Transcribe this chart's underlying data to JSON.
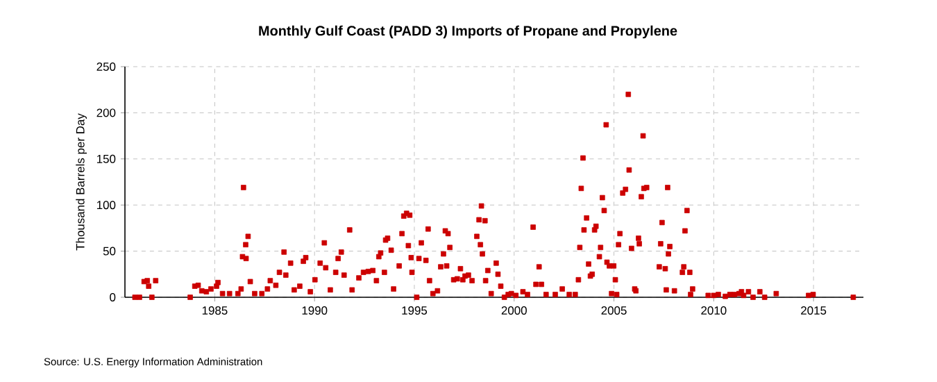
{
  "chart_data": {
    "type": "scatter",
    "title": "Monthly Gulf Coast (PADD 3) Imports of Propane and Propylene",
    "ylabel": "Thousand Barrels per Day",
    "annotations": [
      "Source: U.S. Energy Information Administration"
    ],
    "x": [
      1981.0,
      1981.23,
      1981.46,
      1981.62,
      1981.69,
      1981.85,
      1982.04,
      1983.77,
      1984.0,
      1984.17,
      1984.35,
      1984.58,
      1984.81,
      1985.09,
      1985.16,
      1985.39,
      1985.74,
      1986.16,
      1986.32,
      1986.39,
      1986.44,
      1986.55,
      1986.67,
      1986.57,
      1986.78,
      1987.0,
      1987.36,
      1987.64,
      1987.78,
      1988.06,
      1988.24,
      1988.47,
      1988.56,
      1988.8,
      1988.98,
      1989.26,
      1989.44,
      1989.56,
      1989.79,
      1990.02,
      1990.28,
      1990.49,
      1990.56,
      1990.79,
      1991.06,
      1991.18,
      1991.34,
      1991.48,
      1991.76,
      1991.88,
      1992.22,
      1992.45,
      1992.69,
      1992.92,
      1993.1,
      1993.22,
      1993.31,
      1993.5,
      1993.56,
      1993.66,
      1993.84,
      1993.96,
      1994.24,
      1994.38,
      1994.47,
      1994.61,
      1994.77,
      1994.7,
      1994.84,
      1994.88,
      1995.12,
      1995.23,
      1995.35,
      1995.58,
      1995.69,
      1995.76,
      1995.93,
      1996.16,
      1996.32,
      1996.46,
      1996.55,
      1996.62,
      1996.69,
      1996.78,
      1996.97,
      1997.15,
      1997.31,
      1997.43,
      1997.54,
      1997.71,
      1997.89,
      1998.13,
      1998.24,
      1998.36,
      1998.54,
      1998.31,
      1998.41,
      1998.57,
      1998.68,
      1998.85,
      1999.1,
      1999.19,
      1999.33,
      1999.51,
      1999.7,
      1999.86,
      2000.09,
      2000.44,
      2000.67,
      2000.95,
      2001.09,
      2001.25,
      2001.37,
      2001.6,
      2002.06,
      2002.41,
      2002.76,
      2003.06,
      2003.22,
      2003.29,
      2003.36,
      2003.45,
      2003.5,
      2003.63,
      2003.73,
      2003.82,
      2003.91,
      2004.03,
      2004.1,
      2004.27,
      2004.33,
      2004.42,
      2004.51,
      2004.61,
      2004.65,
      2004.77,
      2004.88,
      2004.99,
      2005.07,
      2005.14,
      2005.23,
      2005.3,
      2005.44,
      2005.58,
      2005.72,
      2005.76,
      2005.88,
      2006.04,
      2006.1,
      2006.23,
      2006.27,
      2006.37,
      2006.46,
      2006.5,
      2006.64,
      2007.27,
      2007.34,
      2007.41,
      2007.57,
      2007.62,
      2007.69,
      2007.73,
      2007.8,
      2008.03,
      2008.43,
      2008.5,
      2008.56,
      2008.66,
      2008.8,
      2008.84,
      2008.94,
      2009.72,
      2010.0,
      2010.23,
      2010.58,
      2010.81,
      2011.04,
      2011.27,
      2011.39,
      2011.5,
      2011.74,
      2011.97,
      2012.31,
      2012.55,
      2013.13,
      2014.75,
      2014.98,
      2016.99
    ],
    "values": [
      0,
      0,
      17,
      18,
      12,
      0,
      18,
      0,
      12,
      13,
      7,
      6,
      9,
      12,
      16,
      4,
      4,
      4,
      9,
      44,
      119,
      57,
      66,
      42,
      17,
      4,
      4,
      9,
      18,
      13,
      27,
      49,
      24,
      37,
      8,
      12,
      39,
      43,
      6,
      19,
      37,
      59,
      32,
      8,
      27,
      42,
      49,
      24,
      73,
      8,
      21,
      27,
      28,
      29,
      18,
      44,
      48,
      27,
      62,
      64,
      51,
      9,
      34,
      69,
      88,
      91,
      89,
      56,
      43,
      27,
      0,
      42,
      59,
      40,
      74,
      18,
      4,
      7,
      33,
      47,
      72,
      34,
      69,
      54,
      19,
      20,
      31,
      19,
      23,
      24,
      18,
      66,
      84,
      99,
      83,
      57,
      47,
      18,
      29,
      4,
      37,
      25,
      12,
      0,
      3,
      4,
      2,
      6,
      3,
      76,
      14,
      33,
      14,
      3,
      3,
      9,
      3,
      3,
      19,
      54,
      118,
      151,
      73,
      86,
      36,
      23,
      25,
      73,
      77,
      44,
      54,
      108,
      94,
      187,
      38,
      34,
      4,
      34,
      19,
      3,
      57,
      69,
      113,
      117,
      220,
      138,
      53,
      9,
      7,
      64,
      58,
      109,
      175,
      118,
      119,
      33,
      58,
      81,
      31,
      8,
      119,
      47,
      55,
      7,
      27,
      33,
      72,
      94,
      27,
      3,
      9,
      2,
      2,
      3,
      1,
      3,
      3,
      4,
      6,
      2,
      6,
      0,
      6,
      0,
      4,
      2,
      3,
      0
    ],
    "color": "#cc0000",
    "marker": "square",
    "xlim": [
      1980.5,
      2017.5
    ],
    "xticks": [
      1985,
      1990,
      1995,
      2000,
      2005,
      2010,
      2015
    ],
    "ylim": [
      0,
      250
    ],
    "yticks": [
      0,
      50,
      100,
      150,
      200,
      250
    ],
    "grid": true
  }
}
